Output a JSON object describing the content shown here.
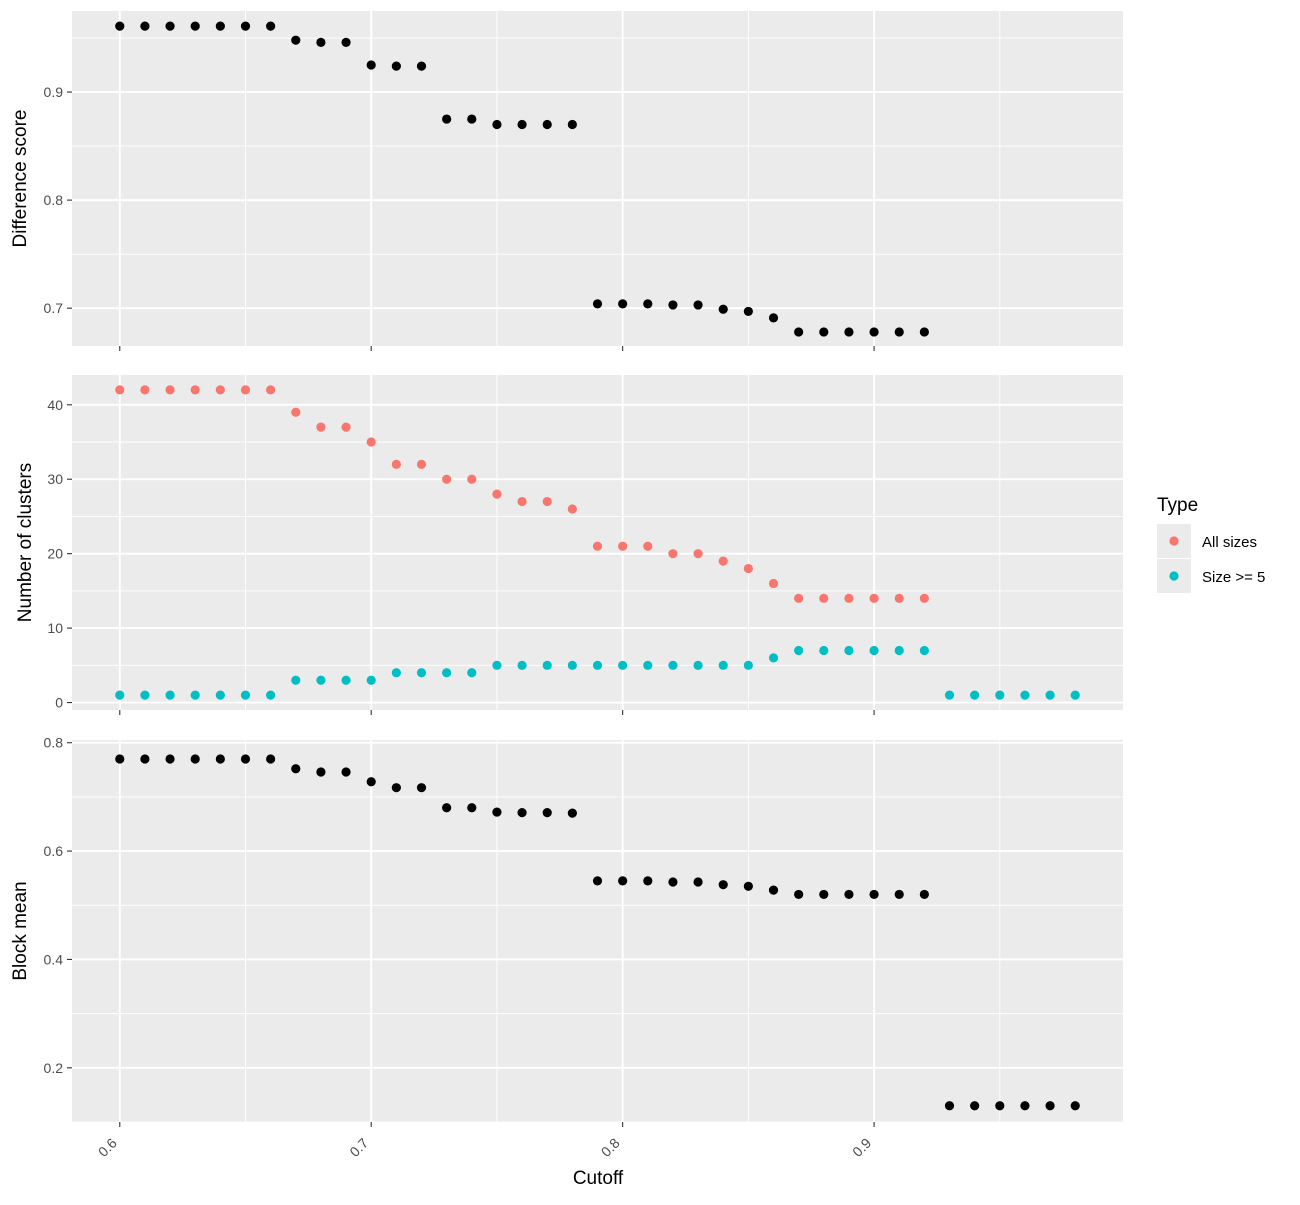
{
  "chart_data": {
    "type": "scatter",
    "xlabel": "Cutoff",
    "x_ticks": [
      0.6,
      0.7,
      0.8,
      0.9
    ],
    "xlim": [
      0.581,
      0.999
    ],
    "legend": {
      "title": "Type",
      "placement": "right",
      "entries": [
        {
          "label": "All sizes",
          "color": "#F8766D"
        },
        {
          "label": "Size >= 5",
          "color": "#00BFC4"
        }
      ]
    },
    "colors": {
      "panel_bg": "#EBEBEB",
      "grid": "#FFFFFF",
      "points": "#000000"
    },
    "panels": [
      {
        "ylabel": "Difference score",
        "ylim": [
          0.665,
          0.975
        ],
        "y_ticks": [
          0.7,
          0.8,
          0.9
        ],
        "series": [
          {
            "color": "#000000",
            "x": [
              0.6,
              0.61,
              0.62,
              0.63,
              0.64,
              0.65,
              0.66,
              0.67,
              0.68,
              0.69,
              0.7,
              0.71,
              0.72,
              0.73,
              0.74,
              0.75,
              0.76,
              0.77,
              0.78,
              0.79,
              0.8,
              0.81,
              0.82,
              0.83,
              0.84,
              0.85,
              0.86,
              0.87,
              0.88,
              0.89,
              0.9,
              0.91,
              0.92
            ],
            "y": [
              0.961,
              0.961,
              0.961,
              0.961,
              0.961,
              0.961,
              0.961,
              0.948,
              0.946,
              0.946,
              0.925,
              0.924,
              0.924,
              0.875,
              0.875,
              0.87,
              0.87,
              0.87,
              0.87,
              0.704,
              0.704,
              0.704,
              0.703,
              0.703,
              0.699,
              0.697,
              0.691,
              0.678,
              0.678,
              0.678,
              0.678,
              0.678,
              0.678
            ]
          }
        ]
      },
      {
        "ylabel": "Number of clusters",
        "ylim": [
          -1,
          44
        ],
        "y_ticks": [
          0,
          10,
          20,
          30,
          40
        ],
        "series": [
          {
            "name": "All sizes",
            "color": "#F8766D",
            "x": [
              0.6,
              0.61,
              0.62,
              0.63,
              0.64,
              0.65,
              0.66,
              0.67,
              0.68,
              0.69,
              0.7,
              0.71,
              0.72,
              0.73,
              0.74,
              0.75,
              0.76,
              0.77,
              0.78,
              0.79,
              0.8,
              0.81,
              0.82,
              0.83,
              0.84,
              0.85,
              0.86,
              0.87,
              0.88,
              0.89,
              0.9,
              0.91,
              0.92
            ],
            "y": [
              42,
              42,
              42,
              42,
              42,
              42,
              42,
              39,
              37,
              37,
              35,
              32,
              32,
              30,
              30,
              28,
              27,
              27,
              26,
              21,
              21,
              21,
              20,
              20,
              19,
              18,
              16,
              14,
              14,
              14,
              14,
              14,
              14
            ]
          },
          {
            "name": "Size >= 5",
            "color": "#00BFC4",
            "x": [
              0.6,
              0.61,
              0.62,
              0.63,
              0.64,
              0.65,
              0.66,
              0.67,
              0.68,
              0.69,
              0.7,
              0.71,
              0.72,
              0.73,
              0.74,
              0.75,
              0.76,
              0.77,
              0.78,
              0.79,
              0.8,
              0.81,
              0.82,
              0.83,
              0.84,
              0.85,
              0.86,
              0.87,
              0.88,
              0.89,
              0.9,
              0.91,
              0.92,
              0.93,
              0.94,
              0.95,
              0.96,
              0.97,
              0.98
            ],
            "y": [
              1,
              1,
              1,
              1,
              1,
              1,
              1,
              3,
              3,
              3,
              3,
              4,
              4,
              4,
              4,
              5,
              5,
              5,
              5,
              5,
              5,
              5,
              5,
              5,
              5,
              5,
              6,
              7,
              7,
              7,
              7,
              7,
              7,
              1,
              1,
              1,
              1,
              1,
              1
            ]
          }
        ]
      },
      {
        "ylabel": "Block mean",
        "ylim": [
          0.1,
          0.805
        ],
        "y_ticks": [
          0.2,
          0.4,
          0.6,
          0.8
        ],
        "series": [
          {
            "color": "#000000",
            "x": [
              0.6,
              0.61,
              0.62,
              0.63,
              0.64,
              0.65,
              0.66,
              0.67,
              0.68,
              0.69,
              0.7,
              0.71,
              0.72,
              0.73,
              0.74,
              0.75,
              0.76,
              0.77,
              0.78,
              0.79,
              0.8,
              0.81,
              0.82,
              0.83,
              0.84,
              0.85,
              0.86,
              0.87,
              0.88,
              0.89,
              0.9,
              0.91,
              0.92,
              0.93,
              0.94,
              0.95,
              0.96,
              0.97,
              0.98
            ],
            "y": [
              0.77,
              0.77,
              0.77,
              0.77,
              0.77,
              0.77,
              0.77,
              0.752,
              0.746,
              0.746,
              0.728,
              0.717,
              0.717,
              0.68,
              0.68,
              0.672,
              0.671,
              0.671,
              0.67,
              0.545,
              0.545,
              0.545,
              0.543,
              0.543,
              0.538,
              0.535,
              0.528,
              0.52,
              0.52,
              0.52,
              0.52,
              0.52,
              0.52,
              0.13,
              0.13,
              0.13,
              0.13,
              0.13,
              0.13
            ]
          }
        ]
      }
    ]
  }
}
